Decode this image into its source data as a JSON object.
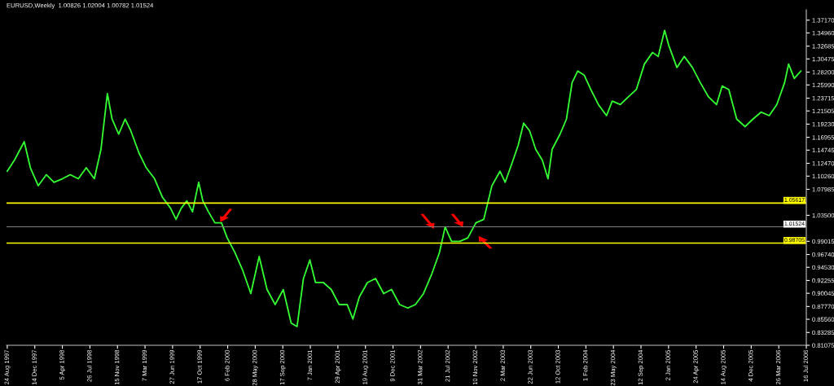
{
  "chart_data": {
    "type": "line",
    "title": "EURUSD,Weekly  1.00826 1.02004 1.00782 1.01524",
    "x": [
      "1997-08-24",
      "1997-09-22",
      "1997-11-01",
      "1997-11-26",
      "1997-12-28",
      "1998-01-30",
      "1998-03-02",
      "1998-04-05",
      "1998-05-07",
      "1998-06-09",
      "1998-07-11",
      "1998-08-13",
      "1998-09-09",
      "1998-10-05",
      "1998-10-24",
      "1998-11-20",
      "1998-12-16",
      "1999-01-08",
      "1999-02-10",
      "1999-03-12",
      "1999-04-15",
      "1999-05-17",
      "1999-06-19",
      "1999-07-11",
      "1999-08-01",
      "1999-08-24",
      "1999-09-16",
      "1999-10-11",
      "1999-10-28",
      "1999-11-20",
      "1999-12-16",
      "2000-01-12",
      "2000-02-04",
      "2000-03-06",
      "2000-04-08",
      "2000-05-10",
      "2000-06-13",
      "2000-07-15",
      "2000-08-17",
      "2000-09-19",
      "2000-10-21",
      "2000-11-14",
      "2000-12-10",
      "2001-01-05",
      "2001-01-28",
      "2001-03-01",
      "2001-04-02",
      "2001-05-04",
      "2001-06-06",
      "2001-06-29",
      "2001-07-25",
      "2001-08-27",
      "2001-09-29",
      "2001-11-01",
      "2001-12-03",
      "2002-01-05",
      "2002-02-07",
      "2002-03-10",
      "2002-04-12",
      "2002-05-14",
      "2002-06-16",
      "2002-07-09",
      "2002-08-04",
      "2002-09-07",
      "2002-10-09",
      "2002-11-11",
      "2002-12-13",
      "2003-01-15",
      "2003-02-17",
      "2003-03-10",
      "2003-04-06",
      "2003-05-02",
      "2003-05-24",
      "2003-06-17",
      "2003-07-12",
      "2003-08-08",
      "2003-08-31",
      "2003-09-17",
      "2003-10-19",
      "2003-11-14",
      "2003-12-07",
      "2003-12-30",
      "2004-01-25",
      "2004-02-21",
      "2004-03-23",
      "2004-04-25",
      "2004-05-18",
      "2004-06-20",
      "2004-07-22",
      "2004-08-24",
      "2004-09-26",
      "2004-10-29",
      "2004-11-21",
      "2004-12-17",
      "2005-01-03",
      "2005-02-05",
      "2005-03-07",
      "2005-04-09",
      "2005-05-11",
      "2005-06-14",
      "2005-07-16",
      "2005-08-08",
      "2005-09-04",
      "2005-10-06",
      "2005-11-09",
      "2005-12-11",
      "2006-01-13",
      "2006-02-15",
      "2006-03-18",
      "2006-04-19",
      "2006-05-05",
      "2006-05-28",
      "2006-06-24"
    ],
    "series": [
      {
        "color": "#33ff33",
        "values": [
          1.111,
          1.13,
          1.162,
          1.117,
          1.086,
          1.105,
          1.092,
          1.098,
          1.105,
          1.098,
          1.117,
          1.098,
          1.149,
          1.245,
          1.201,
          1.175,
          1.201,
          1.181,
          1.143,
          1.117,
          1.098,
          1.066,
          1.047,
          1.028,
          1.047,
          1.06,
          1.041,
          1.092,
          1.06,
          1.041,
          1.022,
          1.022,
          0.996,
          0.971,
          0.939,
          0.9,
          0.964,
          0.907,
          0.881,
          0.907,
          0.849,
          0.843,
          0.926,
          0.958,
          0.919,
          0.919,
          0.907,
          0.881,
          0.881,
          0.856,
          0.894,
          0.919,
          0.926,
          0.9,
          0.907,
          0.881,
          0.875,
          0.881,
          0.9,
          0.932,
          0.971,
          1.015,
          0.99,
          0.99,
          0.996,
          1.022,
          1.028,
          1.086,
          1.111,
          1.092,
          1.124,
          1.156,
          1.194,
          1.181,
          1.149,
          1.13,
          1.098,
          1.149,
          1.175,
          1.201,
          1.264,
          1.284,
          1.277,
          1.252,
          1.226,
          1.207,
          1.232,
          1.226,
          1.239,
          1.252,
          1.296,
          1.316,
          1.309,
          1.354,
          1.328,
          1.29,
          1.309,
          1.29,
          1.264,
          1.239,
          1.226,
          1.258,
          1.252,
          1.201,
          1.188,
          1.201,
          1.213,
          1.207,
          1.226,
          1.264,
          1.296,
          1.271,
          1.284
        ]
      }
    ],
    "xlim": [
      "1997-08-21",
      "2006-07-16"
    ],
    "xticks": [
      {
        "value": "1997-08-24",
        "label": "24 Aug 1997"
      },
      {
        "value": "1997-12-14",
        "label": "14 Dec 1997"
      },
      {
        "value": "1998-04-05",
        "label": "5 Apr 1998"
      },
      {
        "value": "1998-07-26",
        "label": "26 Jul 1998"
      },
      {
        "value": "1998-11-15",
        "label": "15 Nov 1998"
      },
      {
        "value": "1999-03-07",
        "label": "7 Mar 1999"
      },
      {
        "value": "1999-06-27",
        "label": "27 Jun 1999"
      },
      {
        "value": "1999-10-17",
        "label": "17 Oct 1999"
      },
      {
        "value": "2000-02-06",
        "label": "6 Feb 2000"
      },
      {
        "value": "2000-05-28",
        "label": "28 May 2000"
      },
      {
        "value": "2000-09-17",
        "label": "17 Sep 2000"
      },
      {
        "value": "2001-01-07",
        "label": "7 Jan 2001"
      },
      {
        "value": "2001-04-29",
        "label": "29 Apr 2001"
      },
      {
        "value": "2001-08-19",
        "label": "19 Aug 2001"
      },
      {
        "value": "2001-12-09",
        "label": "9 Dec 2001"
      },
      {
        "value": "2002-03-31",
        "label": "31 Mar 2002"
      },
      {
        "value": "2002-07-21",
        "label": "21 Jul 2002"
      },
      {
        "value": "2002-11-10",
        "label": "10 Nov 2002"
      },
      {
        "value": "2003-03-02",
        "label": "2 Mar 2003"
      },
      {
        "value": "2003-06-22",
        "label": "22 Jun 2003"
      },
      {
        "value": "2003-10-12",
        "label": "12 Oct 2003"
      },
      {
        "value": "2004-02-01",
        "label": "1 Feb 2004"
      },
      {
        "value": "2004-05-23",
        "label": "23 May 2004"
      },
      {
        "value": "2004-09-12",
        "label": "12 Sep 2004"
      },
      {
        "value": "2005-01-02",
        "label": "2 Jan 2005"
      },
      {
        "value": "2005-04-24",
        "label": "24 Apr 2005"
      },
      {
        "value": "2005-08-14",
        "label": "14 Aug 2005"
      },
      {
        "value": "2005-12-04",
        "label": "4 Dec 2005"
      },
      {
        "value": "2006-03-26",
        "label": "26 Mar 2006"
      },
      {
        "value": "2006-07-16",
        "label": "16 Jul 2006"
      }
    ],
    "ylim": [
      0.81075,
      1.3896
    ],
    "yticks": [
      {
        "value": 1.3717,
        "label": "1.37170"
      },
      {
        "value": 1.3496,
        "label": "1.34960"
      },
      {
        "value": 1.32685,
        "label": "1.32685"
      },
      {
        "value": 1.30475,
        "label": "1.30475"
      },
      {
        "value": 1.282,
        "label": "1.28200"
      },
      {
        "value": 1.2599,
        "label": "1.25990"
      },
      {
        "value": 1.23715,
        "label": "1.23715"
      },
      {
        "value": 1.21505,
        "label": "1.21505"
      },
      {
        "value": 1.1923,
        "label": "1.19230"
      },
      {
        "value": 1.16955,
        "label": "1.16955"
      },
      {
        "value": 1.14745,
        "label": "1.14745"
      },
      {
        "value": 1.1247,
        "label": "1.12470"
      },
      {
        "value": 1.1026,
        "label": "1.10260"
      },
      {
        "value": 1.07985,
        "label": "1.07985"
      },
      {
        "value": 1.035,
        "label": "1.03500"
      },
      {
        "value": 0.99015,
        "label": "0.99015"
      },
      {
        "value": 0.9674,
        "label": "0.96740"
      },
      {
        "value": 0.9453,
        "label": "0.94530"
      },
      {
        "value": 0.92255,
        "label": "0.92255"
      },
      {
        "value": 0.90045,
        "label": "0.90045"
      },
      {
        "value": 0.8777,
        "label": "0.87770"
      },
      {
        "value": 0.8556,
        "label": "0.85560"
      },
      {
        "value": 0.83285,
        "label": "0.83285"
      },
      {
        "value": 0.81075,
        "label": "0.81075"
      }
    ],
    "ref_lines": [
      {
        "axis": "y",
        "value": 1.05617,
        "label": "1.05617",
        "color": "#ffff00"
      },
      {
        "axis": "y",
        "value": 1.01524,
        "label": "1.01524",
        "color": "#808080"
      },
      {
        "axis": "y",
        "value": 0.98705,
        "label": "0.98705",
        "color": "#ffff00"
      }
    ],
    "grid": false,
    "legend": false,
    "marker": "none",
    "line_style": "solid"
  }
}
